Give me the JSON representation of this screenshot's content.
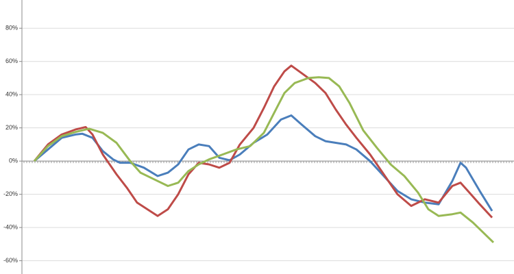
{
  "chart_data": {
    "type": "line",
    "ylim": [
      -68,
      97
    ],
    "xlim": [
      -1.8,
      70
    ],
    "yticks": [
      {
        "value": -60,
        "label": "-60%"
      },
      {
        "value": -40,
        "label": "-40%"
      },
      {
        "value": -20,
        "label": "-20%"
      },
      {
        "value": 0,
        "label": "0%"
      },
      {
        "value": 20,
        "label": "20%"
      },
      {
        "value": 40,
        "label": "40%"
      },
      {
        "value": 60,
        "label": "60%"
      },
      {
        "value": 80,
        "label": "80%"
      }
    ],
    "grid": true,
    "series": [
      {
        "color": "#4a7ebb",
        "x": [
          0,
          2,
          4,
          6,
          7,
          8.5,
          10,
          11.5,
          12.5,
          14,
          16,
          18,
          19.5,
          21,
          22.5,
          24,
          25.5,
          27,
          28.5,
          30,
          32,
          34,
          36,
          37.5,
          39,
          41,
          42.5,
          44,
          45.5,
          47,
          49,
          51,
          53,
          55,
          57,
          59,
          61,
          62.2,
          63,
          65,
          66.8
        ],
        "values": [
          0,
          7,
          14,
          16,
          16.5,
          14,
          6,
          1,
          -1,
          -1,
          -4,
          -9,
          -7,
          -2,
          7,
          10,
          9,
          2,
          0.5,
          4,
          11,
          16,
          25,
          27.5,
          22,
          15,
          12,
          11,
          10,
          7,
          0,
          -9,
          -18,
          -23,
          -25,
          -26,
          -12,
          -1,
          -4,
          -18,
          -30
        ]
      },
      {
        "color": "#be4b48",
        "x": [
          0,
          2,
          4,
          6,
          7.5,
          8.5,
          10,
          12,
          13.5,
          15,
          16.5,
          18,
          19.5,
          21,
          22.5,
          24,
          25.5,
          27,
          28.5,
          30,
          32,
          33.5,
          35,
          36.5,
          37.5,
          39,
          41,
          42.5,
          44,
          45.5,
          47,
          49,
          51,
          53,
          55,
          57,
          59,
          61,
          62.2,
          63.5,
          65,
          66.8
        ],
        "values": [
          0,
          10,
          16,
          19,
          20.5,
          16,
          4,
          -8,
          -16,
          -25,
          -29,
          -33,
          -29,
          -20,
          -8,
          -1,
          -2,
          -4,
          -1,
          10,
          20,
          32,
          45,
          54,
          57.5,
          53,
          47,
          41,
          31,
          22,
          14,
          4,
          -8,
          -20,
          -27,
          -23,
          -25,
          -15,
          -13,
          -19,
          -26,
          -34
        ]
      },
      {
        "color": "#98b954",
        "x": [
          0,
          2,
          4,
          6,
          8,
          10,
          12,
          14,
          15.5,
          17.5,
          19.5,
          21,
          22.5,
          24,
          25.5,
          27.5,
          29.5,
          31.5,
          33.5,
          35,
          36.5,
          38,
          40,
          41.5,
          43,
          44.5,
          46,
          48,
          50,
          52,
          54,
          56,
          57.5,
          59,
          61,
          62.2,
          64,
          67
        ],
        "values": [
          0,
          9,
          15,
          17.5,
          19.5,
          17,
          11,
          0,
          -7,
          -11,
          -15,
          -13,
          -6,
          -2,
          1,
          4,
          7,
          9,
          17,
          29,
          41,
          47,
          50,
          50.5,
          50,
          45,
          35,
          18.5,
          8,
          -2,
          -9,
          -19,
          -29,
          -33,
          -32,
          -31,
          -37,
          -49
        ]
      }
    ]
  }
}
